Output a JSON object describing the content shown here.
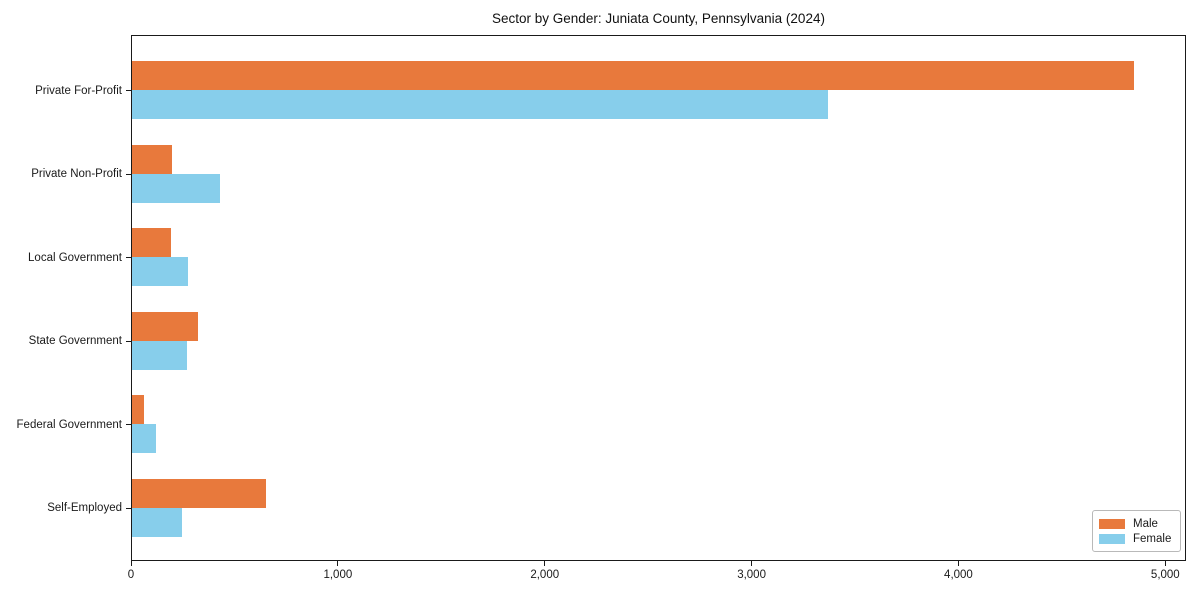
{
  "chart_data": {
    "type": "bar",
    "orientation": "horizontal",
    "title": "Sector by Gender: Juniata County, Pennsylvania (2024)",
    "xlabel": "",
    "ylabel": "",
    "xlim": [
      0,
      5100
    ],
    "grid": false,
    "legend_position": "lower right",
    "categories": [
      "Private For-Profit",
      "Private Non-Profit",
      "Local Government",
      "State Government",
      "Federal Government",
      "Self-Employed"
    ],
    "series": [
      {
        "name": "Male",
        "color": "#E8793C",
        "values": [
          4850,
          200,
          195,
          325,
          65,
          655
        ]
      },
      {
        "name": "Female",
        "color": "#87CEEB",
        "values": [
          3370,
          430,
          275,
          270,
          120,
          245
        ]
      }
    ],
    "x_ticks": [
      {
        "value": 0,
        "label": "0"
      },
      {
        "value": 1000,
        "label": "1,000"
      },
      {
        "value": 2000,
        "label": "2,000"
      },
      {
        "value": 3000,
        "label": "3,000"
      },
      {
        "value": 4000,
        "label": "4,000"
      },
      {
        "value": 5000,
        "label": "5,000"
      }
    ]
  }
}
